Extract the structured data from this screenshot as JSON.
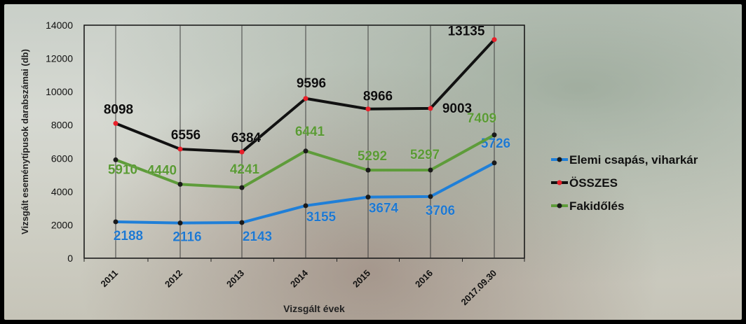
{
  "chart_data": {
    "type": "line",
    "categories": [
      "2011",
      "2012",
      "2013",
      "2014",
      "2015",
      "2016",
      "2017.09.30"
    ],
    "series": [
      {
        "name": "Elemi csapás, viharkár",
        "values": [
          2188,
          2116,
          2143,
          3155,
          3674,
          3706,
          5726
        ],
        "color": "#1f7fd8",
        "marker": "#1a1a1a",
        "label_color": "#1e78d0"
      },
      {
        "name": "ÖSSZES",
        "values": [
          8098,
          6556,
          6384,
          9596,
          8966,
          9003,
          13135
        ],
        "color": "#111111",
        "marker": "#e8202a",
        "label_color": "#0d0d0d"
      },
      {
        "name": "Fakidőlés",
        "values": [
          5910,
          4440,
          4241,
          6441,
          5292,
          5297,
          7409
        ],
        "color": "#5e9c3a",
        "marker": "#1a1a1a",
        "label_color": "#5a9a34"
      }
    ],
    "ylabel": "Vizsgált eseménytípusok darabszámai (db)",
    "xlabel": "Vizsgált évek",
    "ylim": [
      0,
      14000
    ],
    "yticks": [
      "0",
      "2000",
      "4000",
      "6000",
      "8000",
      "10000",
      "12000",
      "14000"
    ],
    "grid": "vertical drop lines at categories",
    "legend_position": "right"
  }
}
